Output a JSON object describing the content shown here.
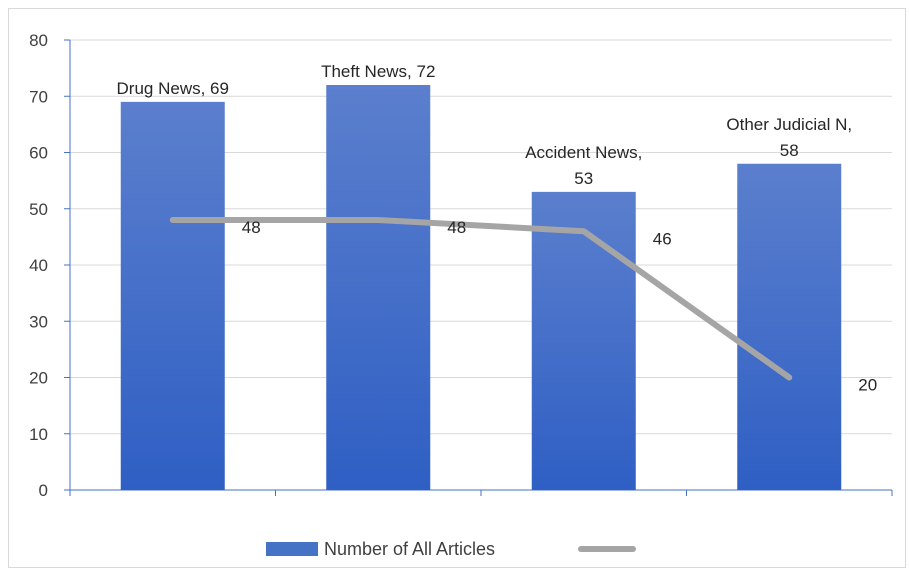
{
  "chart_data": {
    "type": "bar",
    "categories": [
      "Drug News",
      "Theft News",
      "Accident News",
      "Other Judicial N"
    ],
    "series": [
      {
        "name": "Number of All Articles",
        "type": "bar",
        "values": [
          69,
          72,
          53,
          58
        ],
        "color": "#4472c4",
        "labels": [
          [
            "Drug News, 69"
          ],
          [
            "Theft News, 72"
          ],
          [
            "Accident News,",
            "53"
          ],
          [
            "Other Judicial N,",
            "58"
          ]
        ]
      },
      {
        "name": "",
        "type": "line",
        "values": [
          48,
          48,
          46,
          20
        ],
        "color": "#a5a5a5",
        "labels": [
          [
            "48"
          ],
          [
            "48"
          ],
          [
            "46"
          ],
          [
            "20"
          ]
        ]
      }
    ],
    "ylim": [
      0,
      80
    ],
    "yticks": [
      "0",
      "10",
      "20",
      "30",
      "40",
      "50",
      "60",
      "70",
      "80"
    ],
    "grid": true,
    "legend_position": "bottom"
  }
}
